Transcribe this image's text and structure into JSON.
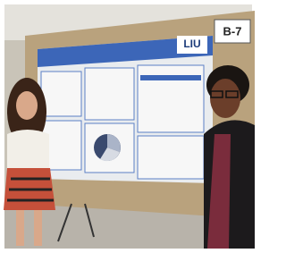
{
  "sign": {
    "label": "B-7"
  },
  "poster": {
    "logo": "LIU"
  }
}
